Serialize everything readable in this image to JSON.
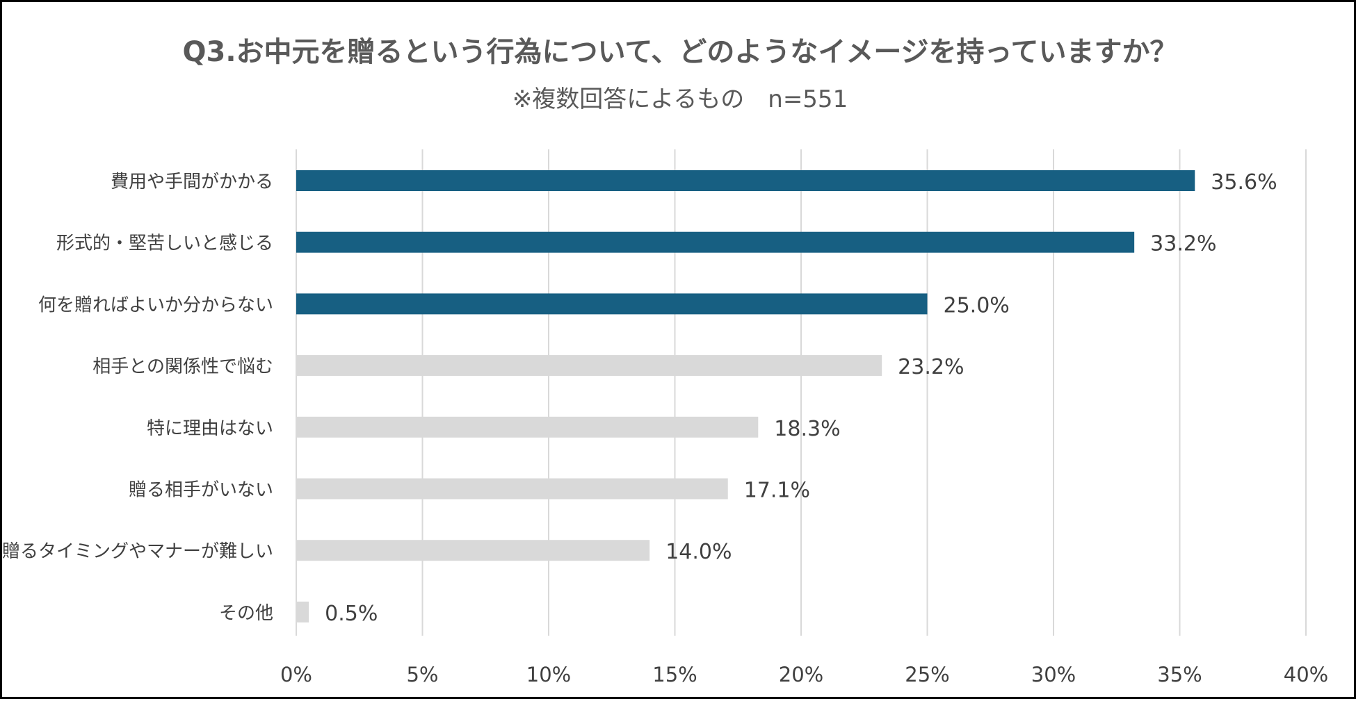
{
  "chart_data": {
    "type": "bar",
    "orientation": "horizontal",
    "title": "Q3.お中元を贈るという行為について、どのようなイメージを持っていますか？",
    "subtitle": "※複数回答によるもの　n=551",
    "categories": [
      "費用や手間がかかる",
      "形式的・堅苦しいと感じる",
      "何を贈ればよいか分からない",
      "相手との関係性で悩む",
      "特に理由はない",
      "贈る相手がいない",
      "贈るタイミングやマナーが難しい",
      "その他"
    ],
    "values": [
      35.6,
      33.2,
      25.0,
      23.2,
      18.3,
      17.1,
      14.0,
      0.5
    ],
    "data_labels": [
      "35.6%",
      "33.2%",
      "25.0%",
      "23.2%",
      "18.3%",
      "17.1%",
      "14.0%",
      "0.5%"
    ],
    "highlighted": [
      true,
      true,
      true,
      false,
      false,
      false,
      false,
      false
    ],
    "xlim": [
      0,
      40
    ],
    "xticks": [
      0,
      5,
      10,
      15,
      20,
      25,
      30,
      35,
      40
    ],
    "xtick_labels": [
      "0%",
      "5%",
      "10%",
      "15%",
      "20%",
      "25%",
      "30%",
      "35%",
      "40%"
    ],
    "xlabel": "",
    "ylabel": "",
    "grid": "vertical",
    "legend": "none",
    "colors": {
      "highlight": "#175F82",
      "normal": "#D9D9D9",
      "grid": "#D9D9D9",
      "title": "#595959",
      "text": "#404040"
    }
  }
}
